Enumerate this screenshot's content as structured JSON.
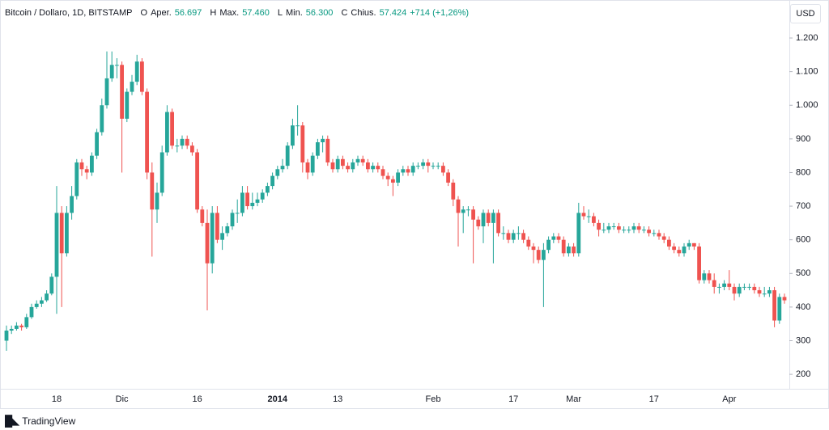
{
  "header": {
    "symbol": "Bitcoin / Dollaro, 1D, BITSTAMP",
    "o_key": "O",
    "o_label": "Aper.",
    "o_value": "56.697",
    "h_key": "H",
    "h_label": "Max.",
    "h_value": "57.460",
    "l_key": "L",
    "l_label": "Min.",
    "l_value": "56.300",
    "c_key": "C",
    "c_label": "Chius.",
    "c_value": "57.424",
    "change": "+714 (+1,26%)"
  },
  "currency": "USD",
  "brand": "TradingView",
  "chart_data": {
    "type": "candlestick",
    "categories": [
      null,
      null,
      null,
      null,
      null,
      null,
      null,
      null,
      null,
      null,
      "18",
      null,
      null,
      null,
      null,
      null,
      null,
      null,
      null,
      null,
      null,
      null,
      null,
      "Dic",
      null,
      null,
      null,
      null,
      null,
      null,
      null,
      null,
      null,
      null,
      null,
      null,
      null,
      null,
      "16",
      null,
      null,
      null,
      null,
      null,
      null,
      null,
      null,
      null,
      null,
      null,
      null,
      null,
      null,
      null,
      "2014",
      null,
      null,
      null,
      null,
      null,
      null,
      null,
      null,
      null,
      null,
      null,
      "13",
      null,
      null,
      null,
      null,
      null,
      null,
      null,
      null,
      null,
      null,
      null,
      null,
      null,
      null,
      null,
      null,
      null,
      null,
      "Feb",
      null,
      null,
      null,
      null,
      null,
      null,
      null,
      null,
      null,
      null,
      null,
      null,
      null,
      null,
      null,
      "17",
      null,
      null,
      null,
      null,
      null,
      null,
      null,
      null,
      null,
      null,
      null,
      "Mar",
      null,
      null,
      null,
      null,
      null,
      null,
      null,
      null,
      null,
      null,
      null,
      null,
      null,
      null,
      null,
      "17",
      null,
      null,
      null,
      null,
      null,
      null,
      null,
      null,
      null,
      null,
      null,
      null,
      null,
      null,
      "Apr",
      null,
      null,
      null,
      null,
      null,
      null,
      null,
      null,
      null,
      null,
      null
    ],
    "open": [
      300,
      330,
      335,
      345,
      340,
      370,
      400,
      410,
      420,
      440,
      490,
      680,
      560,
      680,
      730,
      830,
      810,
      800,
      850,
      920,
      1000,
      1080,
      1120,
      1120,
      960,
      1040,
      1070,
      1130,
      1040,
      800,
      690,
      740,
      860,
      980,
      880,
      880,
      900,
      880,
      860,
      690,
      650,
      530,
      680,
      600,
      620,
      640,
      680,
      680,
      740,
      700,
      710,
      720,
      740,
      760,
      790,
      810,
      820,
      880,
      940,
      940,
      830,
      800,
      850,
      890,
      900,
      830,
      810,
      840,
      820,
      810,
      830,
      840,
      830,
      810,
      820,
      810,
      790,
      780,
      770,
      800,
      810,
      800,
      820,
      820,
      830,
      820,
      820,
      820,
      800,
      770,
      720,
      680,
      690,
      690,
      660,
      640,
      680,
      650,
      680,
      620,
      620,
      600,
      620,
      620,
      600,
      580,
      570,
      540,
      570,
      600,
      610,
      600,
      560,
      580,
      560,
      680,
      670,
      670,
      650,
      630,
      630,
      640,
      640,
      630,
      630,
      630,
      640,
      630,
      630,
      620,
      620,
      610,
      600,
      580,
      570,
      560,
      580,
      590,
      580,
      480,
      500,
      480,
      460,
      460,
      470,
      460,
      440,
      460,
      460,
      460,
      450,
      440,
      440,
      450,
      360,
      430
    ],
    "high": [
      345,
      345,
      355,
      350,
      380,
      410,
      420,
      430,
      450,
      500,
      760,
      700,
      700,
      760,
      840,
      840,
      820,
      860,
      930,
      1020,
      1160,
      1160,
      1140,
      1130,
      1050,
      1090,
      1150,
      1140,
      1050,
      830,
      770,
      880,
      1000,
      990,
      900,
      910,
      910,
      890,
      870,
      700,
      690,
      700,
      700,
      640,
      650,
      690,
      720,
      760,
      760,
      740,
      740,
      750,
      770,
      800,
      820,
      840,
      890,
      960,
      1000,
      950,
      840,
      860,
      900,
      910,
      910,
      840,
      850,
      850,
      830,
      840,
      850,
      850,
      840,
      830,
      830,
      820,
      800,
      790,
      810,
      820,
      820,
      830,
      830,
      840,
      840,
      830,
      830,
      830,
      810,
      780,
      730,
      700,
      700,
      700,
      670,
      690,
      690,
      690,
      690,
      640,
      630,
      630,
      640,
      630,
      610,
      590,
      580,
      590,
      610,
      620,
      620,
      610,
      590,
      590,
      710,
      700,
      690,
      680,
      660,
      650,
      650,
      650,
      650,
      640,
      640,
      650,
      650,
      640,
      640,
      630,
      630,
      620,
      610,
      590,
      580,
      590,
      600,
      590,
      590,
      510,
      510,
      500,
      470,
      480,
      510,
      470,
      470,
      470,
      470,
      470,
      460,
      460,
      460,
      460,
      440,
      440
    ],
    "low": [
      270,
      320,
      330,
      330,
      335,
      365,
      395,
      400,
      415,
      435,
      380,
      400,
      550,
      660,
      720,
      790,
      780,
      790,
      840,
      910,
      990,
      1070,
      1080,
      800,
      950,
      1030,
      1060,
      1030,
      780,
      550,
      650,
      730,
      850,
      870,
      860,
      870,
      870,
      850,
      680,
      640,
      390,
      500,
      590,
      570,
      610,
      630,
      650,
      670,
      690,
      690,
      700,
      710,
      730,
      750,
      780,
      800,
      810,
      870,
      910,
      800,
      780,
      790,
      840,
      860,
      820,
      800,
      800,
      810,
      800,
      800,
      820,
      820,
      800,
      800,
      800,
      780,
      760,
      730,
      760,
      790,
      790,
      790,
      810,
      810,
      800,
      810,
      810,
      790,
      760,
      700,
      580,
      620,
      670,
      530,
      630,
      590,
      640,
      530,
      610,
      600,
      590,
      590,
      600,
      590,
      570,
      530,
      530,
      400,
      560,
      590,
      590,
      550,
      550,
      550,
      550,
      660,
      650,
      640,
      610,
      620,
      620,
      630,
      620,
      620,
      620,
      620,
      620,
      620,
      610,
      610,
      600,
      590,
      570,
      560,
      550,
      550,
      570,
      570,
      470,
      470,
      470,
      440,
      440,
      450,
      450,
      420,
      430,
      450,
      450,
      440,
      430,
      430,
      430,
      340,
      350,
      410
    ],
    "close": [
      330,
      335,
      345,
      340,
      370,
      400,
      410,
      420,
      440,
      490,
      680,
      560,
      680,
      730,
      830,
      810,
      800,
      850,
      920,
      1000,
      1080,
      1120,
      1120,
      960,
      1040,
      1070,
      1130,
      1040,
      800,
      690,
      740,
      860,
      980,
      880,
      880,
      900,
      880,
      860,
      690,
      650,
      530,
      680,
      600,
      620,
      640,
      680,
      680,
      740,
      700,
      710,
      720,
      740,
      760,
      790,
      810,
      820,
      880,
      940,
      940,
      830,
      800,
      850,
      890,
      900,
      830,
      810,
      840,
      820,
      810,
      830,
      840,
      830,
      810,
      820,
      810,
      790,
      780,
      770,
      800,
      810,
      800,
      820,
      820,
      830,
      820,
      820,
      820,
      800,
      770,
      720,
      680,
      690,
      690,
      660,
      640,
      680,
      650,
      680,
      620,
      620,
      600,
      620,
      620,
      600,
      580,
      570,
      540,
      570,
      600,
      610,
      600,
      560,
      580,
      560,
      680,
      670,
      670,
      650,
      630,
      630,
      640,
      640,
      630,
      630,
      630,
      640,
      630,
      630,
      620,
      620,
      610,
      600,
      580,
      570,
      560,
      580,
      590,
      580,
      480,
      500,
      480,
      460,
      460,
      470,
      460,
      440,
      460,
      460,
      460,
      450,
      440,
      440,
      450,
      360,
      430,
      420
    ],
    "up_color": "#26a69a",
    "down_color": "#ef5350",
    "ylim": [
      157,
      1313
    ],
    "yticks": [
      200,
      300,
      400,
      500,
      600,
      700,
      800,
      900,
      {
        "value": 1000,
        "label": "1.000"
      },
      {
        "value": 1100,
        "label": "1.100"
      },
      {
        "value": 1200,
        "label": "1.200"
      }
    ]
  }
}
